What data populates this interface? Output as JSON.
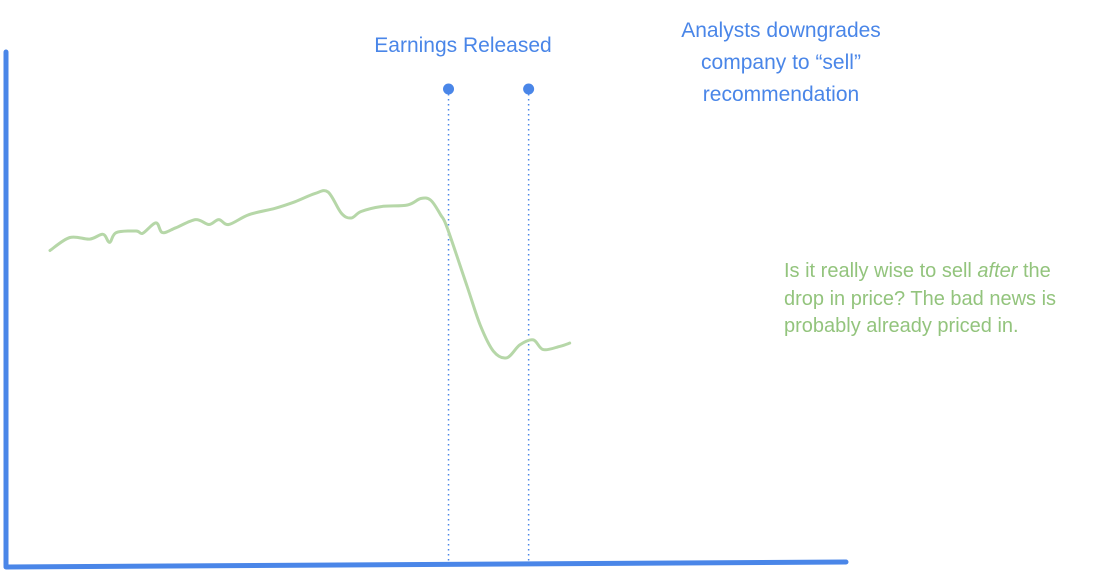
{
  "colors": {
    "axis": "#4a86e8",
    "event": "#4a86e8",
    "price_line": "#b6d7a8",
    "note_text": "#93c47d"
  },
  "chart_data": {
    "type": "line",
    "title": "",
    "xlabel": "",
    "ylabel": "",
    "xlim": [
      0,
      100
    ],
    "ylim": [
      0,
      100
    ],
    "grid": false,
    "series": [
      {
        "values": [
          [
            0,
            66
          ],
          [
            3,
            70
          ],
          [
            6,
            69.5
          ],
          [
            8,
            71
          ],
          [
            9,
            68.5
          ],
          [
            10,
            71.5
          ],
          [
            13,
            72
          ],
          [
            14,
            71.3
          ],
          [
            16,
            74.5
          ],
          [
            17,
            71.5
          ],
          [
            19,
            73
          ],
          [
            22,
            75.5
          ],
          [
            24,
            74
          ],
          [
            25.5,
            75.5
          ],
          [
            27,
            74
          ],
          [
            30,
            77
          ],
          [
            34,
            79
          ],
          [
            37,
            81
          ],
          [
            40,
            83.5
          ],
          [
            42,
            84
          ],
          [
            44,
            77.5
          ],
          [
            45.5,
            76
          ],
          [
            47,
            78
          ],
          [
            50,
            79.5
          ],
          [
            54,
            80
          ],
          [
            56,
            82
          ],
          [
            57.5,
            81.5
          ],
          [
            59,
            77
          ],
          [
            60,
            73
          ],
          [
            63,
            55
          ],
          [
            65,
            43
          ],
          [
            67,
            35
          ],
          [
            69,
            33
          ],
          [
            71,
            37
          ],
          [
            73,
            38.5
          ],
          [
            74.5,
            35.5
          ],
          [
            77,
            36.5
          ],
          [
            78.5,
            37.5
          ]
        ]
      }
    ],
    "events": [
      {
        "label": "Earnings Released",
        "x": 60.2
      },
      {
        "label": "Analysts downgrades company to “sell” recommendation",
        "x": 72.3
      }
    ]
  },
  "annotations": {
    "earnings": "Earnings Released",
    "downgrade_line1": "Analysts downgrades",
    "downgrade_line2": "company to “sell”",
    "downgrade_line3": "recommendation"
  },
  "note": {
    "part1": "Is it really wise to sell ",
    "emphasis": "after",
    "part2": " the drop in price? The bad news is probably already priced in."
  }
}
